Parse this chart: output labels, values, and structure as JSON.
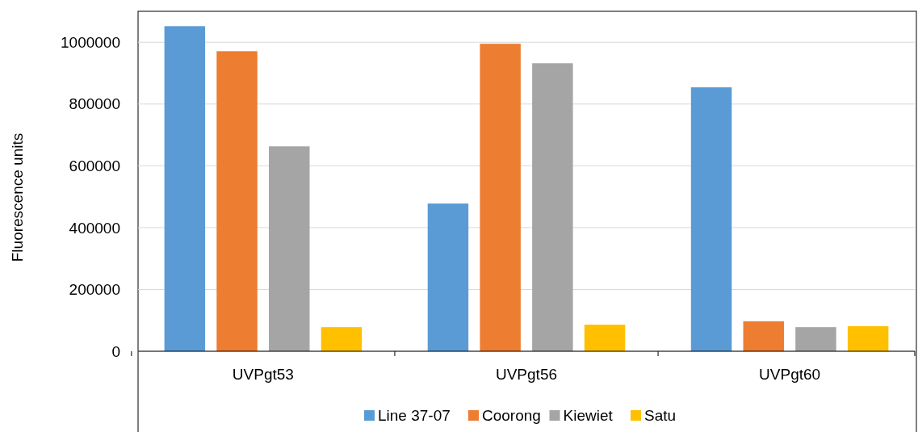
{
  "chart_data": {
    "type": "bar",
    "ylabel": "Fluorescence units",
    "categories": [
      "UVPgt53",
      "UVPgt56",
      "UVPgt60"
    ],
    "series": [
      {
        "name": "Line 37-07",
        "color": "#5b9bd5",
        "values": [
          1052000,
          478000,
          854000
        ]
      },
      {
        "name": "Coorong",
        "color": "#ed7d31",
        "values": [
          971000,
          995000,
          97000
        ]
      },
      {
        "name": "Kiewiet",
        "color": "#a5a5a5",
        "values": [
          663000,
          932000,
          78000
        ]
      },
      {
        "name": "Satu",
        "color": "#ffc000",
        "values": [
          78000,
          86000,
          81000
        ]
      }
    ],
    "ylim": [
      0,
      1100000
    ],
    "yticks": [
      0,
      200000,
      400000,
      600000,
      800000,
      1000000
    ],
    "grid": "y",
    "legend": "bottom"
  }
}
